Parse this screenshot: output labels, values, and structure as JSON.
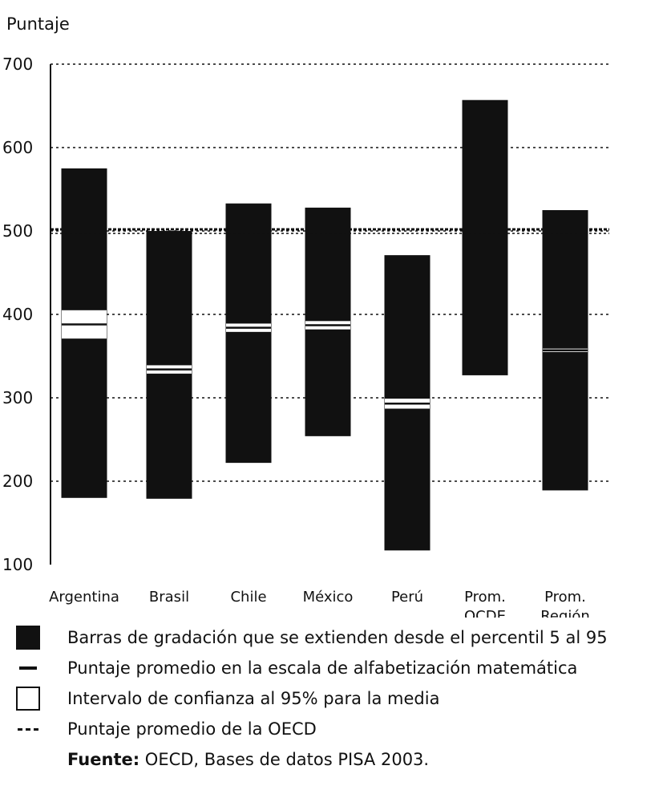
{
  "chart_data": {
    "type": "bar",
    "ylabel": "Puntaje",
    "ylim": [
      100,
      700
    ],
    "yticks": [
      100,
      200,
      300,
      400,
      500,
      600,
      700
    ],
    "grid": true,
    "oecd_mean": 500,
    "categories": [
      {
        "lines": [
          "Argentina"
        ],
        "p5": 180,
        "p95": 575,
        "mean": 388,
        "ci_low": 371,
        "ci_high": 405
      },
      {
        "lines": [
          "Brasil"
        ],
        "p5": 179,
        "p95": 500,
        "mean": 334,
        "ci_low": 329,
        "ci_high": 339
      },
      {
        "lines": [
          "Chile"
        ],
        "p5": 222,
        "p95": 533,
        "mean": 384,
        "ci_low": 379,
        "ci_high": 389
      },
      {
        "lines": [
          "México"
        ],
        "p5": 254,
        "p95": 528,
        "mean": 387,
        "ci_low": 382,
        "ci_high": 392
      },
      {
        "lines": [
          "Perú"
        ],
        "p5": 117,
        "p95": 471,
        "mean": 293,
        "ci_low": 287,
        "ci_high": 299
      },
      {
        "lines": [
          "Prom.",
          "OCDE"
        ],
        "p5": 327,
        "p95": 657,
        "mean": null,
        "ci_low": null,
        "ci_high": null
      },
      {
        "lines": [
          "Prom.",
          "Región"
        ],
        "p5": 189,
        "p95": 525,
        "mean": 357,
        "ci_low": 355,
        "ci_high": 359
      }
    ],
    "colors": {
      "bar": "#111111",
      "ci": "#ffffff",
      "grid": "#111111"
    }
  },
  "legend": {
    "bar": "Barras de gradación que se extienden desde el percentil 5 al 95",
    "mean": "Puntaje promedio en la escala de alfabetización matemática",
    "ci": "Intervalo de confianza al 95% para la media",
    "oecd": "Puntaje promedio de la OECD"
  },
  "source": {
    "label": "Fuente:",
    "text": " OECD, Bases de datos PISA 2003."
  }
}
